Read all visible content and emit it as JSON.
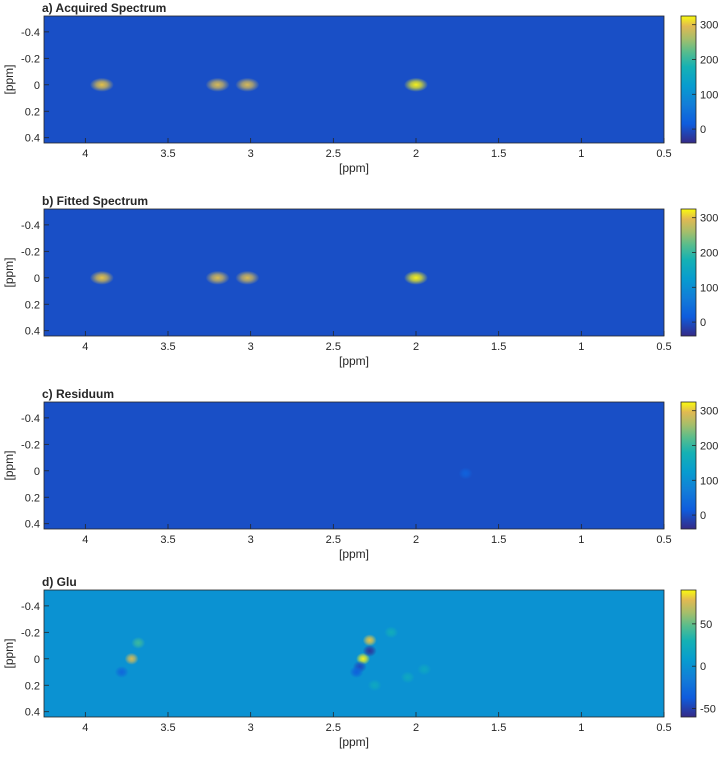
{
  "chart_data": [
    {
      "type": "heatmap",
      "title": "a) Acquired Spectrum",
      "xlabel": "[ppm]",
      "ylabel": "[ppm]",
      "xlim": [
        4.25,
        0.5
      ],
      "ylim": [
        -0.52,
        0.44
      ],
      "x_ticks": [
        "4",
        "3.5",
        "3",
        "2.5",
        "2",
        "1.5",
        "1",
        "0.5"
      ],
      "y_ticks": [
        "-0.4",
        "-0.2",
        "0",
        "0.2",
        "0.4"
      ],
      "colorbar": {
        "range": [
          -40,
          325
        ],
        "ticks": [
          "300",
          "200",
          "100",
          "0"
        ]
      },
      "background_value": 0,
      "peaks": [
        {
          "x": 3.9,
          "y": 0,
          "value": 300
        },
        {
          "x": 3.2,
          "y": 0,
          "value": 290
        },
        {
          "x": 3.02,
          "y": 0,
          "value": 290
        },
        {
          "x": 2.0,
          "y": 0,
          "value": 320
        }
      ]
    },
    {
      "type": "heatmap",
      "title": "b) Fitted Spectrum",
      "xlabel": "[ppm]",
      "ylabel": "[ppm]",
      "xlim": [
        4.25,
        0.5
      ],
      "ylim": [
        -0.52,
        0.44
      ],
      "x_ticks": [
        "4",
        "3.5",
        "3",
        "2.5",
        "2",
        "1.5",
        "1",
        "0.5"
      ],
      "y_ticks": [
        "-0.4",
        "-0.2",
        "0",
        "0.2",
        "0.4"
      ],
      "colorbar": {
        "range": [
          -40,
          325
        ],
        "ticks": [
          "300",
          "200",
          "100",
          "0"
        ]
      },
      "background_value": 0,
      "peaks": [
        {
          "x": 3.9,
          "y": 0,
          "value": 300
        },
        {
          "x": 3.2,
          "y": 0,
          "value": 290
        },
        {
          "x": 3.02,
          "y": 0,
          "value": 290
        },
        {
          "x": 2.0,
          "y": 0,
          "value": 320
        }
      ]
    },
    {
      "type": "heatmap",
      "title": "c) Residuum",
      "xlabel": "[ppm]",
      "ylabel": "[ppm]",
      "xlim": [
        4.25,
        0.5
      ],
      "ylim": [
        -0.52,
        0.44
      ],
      "x_ticks": [
        "4",
        "3.5",
        "3",
        "2.5",
        "2",
        "1.5",
        "1",
        "0.5"
      ],
      "y_ticks": [
        "-0.4",
        "-0.2",
        "0",
        "0.2",
        "0.4"
      ],
      "colorbar": {
        "range": [
          -40,
          325
        ],
        "ticks": [
          "300",
          "200",
          "100",
          "0"
        ]
      },
      "background_value": 0,
      "peaks": [
        {
          "x": 1.7,
          "y": 0.02,
          "value": 25
        }
      ]
    },
    {
      "type": "heatmap",
      "title": "d) Glu",
      "xlabel": "[ppm]",
      "ylabel": "[ppm]",
      "xlim": [
        4.25,
        0.5
      ],
      "ylim": [
        -0.52,
        0.44
      ],
      "x_ticks": [
        "4",
        "3.5",
        "3",
        "2.5",
        "2",
        "1.5",
        "1",
        "0.5"
      ],
      "y_ticks": [
        "-0.4",
        "-0.2",
        "0",
        "0.2",
        "0.4"
      ],
      "colorbar": {
        "range": [
          -60,
          90
        ],
        "ticks": [
          "50",
          "0",
          "-50"
        ]
      },
      "background_value": 0,
      "peaks": [
        {
          "x": 3.72,
          "y": 0,
          "value": 75
        },
        {
          "x": 3.68,
          "y": -0.12,
          "value": 40
        },
        {
          "x": 3.78,
          "y": 0.1,
          "value": -30
        },
        {
          "x": 2.28,
          "y": -0.14,
          "value": 80
        },
        {
          "x": 2.32,
          "y": 0,
          "value": 88
        },
        {
          "x": 2.28,
          "y": -0.06,
          "value": -55
        },
        {
          "x": 2.34,
          "y": 0.06,
          "value": -45
        },
        {
          "x": 2.36,
          "y": 0.1,
          "value": -35
        },
        {
          "x": 2.15,
          "y": -0.2,
          "value": 25
        },
        {
          "x": 2.05,
          "y": 0.14,
          "value": 20
        },
        {
          "x": 2.25,
          "y": 0.2,
          "value": 20
        },
        {
          "x": 1.95,
          "y": 0.08,
          "value": 18
        }
      ]
    }
  ]
}
